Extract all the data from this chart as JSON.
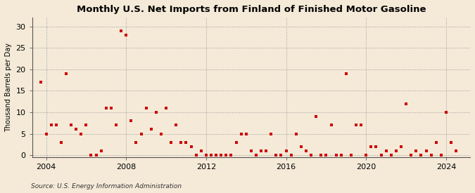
{
  "title": "Monthly U.S. Net Imports from Finland of Finished Motor Gasoline",
  "ylabel": "Thousand Barrels per Day",
  "source": "Source: U.S. Energy Information Administration",
  "background_color": "#f5ead8",
  "plot_bg_color": "#f5ead8",
  "marker_color": "#cc0000",
  "xlim": [
    2003.3,
    2025.2
  ],
  "ylim": [
    -0.5,
    32
  ],
  "yticks": [
    0,
    5,
    10,
    15,
    20,
    25,
    30
  ],
  "xticks": [
    2004,
    2008,
    2012,
    2016,
    2020,
    2024
  ],
  "data_points": [
    [
      2003.75,
      17
    ],
    [
      2004.0,
      5
    ],
    [
      2004.25,
      7
    ],
    [
      2004.5,
      7
    ],
    [
      2004.75,
      3
    ],
    [
      2005.0,
      19
    ],
    [
      2005.25,
      7
    ],
    [
      2005.5,
      6
    ],
    [
      2005.75,
      5
    ],
    [
      2006.0,
      7
    ],
    [
      2006.25,
      0
    ],
    [
      2006.5,
      0
    ],
    [
      2006.75,
      1
    ],
    [
      2007.0,
      11
    ],
    [
      2007.25,
      11
    ],
    [
      2007.5,
      7
    ],
    [
      2007.75,
      29
    ],
    [
      2008.0,
      28
    ],
    [
      2008.25,
      8
    ],
    [
      2008.5,
      3
    ],
    [
      2008.75,
      5
    ],
    [
      2009.0,
      11
    ],
    [
      2009.25,
      6
    ],
    [
      2009.5,
      10
    ],
    [
      2009.75,
      5
    ],
    [
      2010.0,
      11
    ],
    [
      2010.25,
      3
    ],
    [
      2010.5,
      7
    ],
    [
      2010.75,
      3
    ],
    [
      2011.0,
      3
    ],
    [
      2011.25,
      2
    ],
    [
      2011.5,
      0
    ],
    [
      2011.75,
      1
    ],
    [
      2012.0,
      0
    ],
    [
      2012.25,
      0
    ],
    [
      2012.5,
      0
    ],
    [
      2012.75,
      0
    ],
    [
      2013.0,
      0
    ],
    [
      2013.25,
      0
    ],
    [
      2013.5,
      3
    ],
    [
      2013.75,
      5
    ],
    [
      2014.0,
      5
    ],
    [
      2014.25,
      1
    ],
    [
      2014.5,
      0
    ],
    [
      2014.75,
      1
    ],
    [
      2015.0,
      1
    ],
    [
      2015.25,
      5
    ],
    [
      2015.5,
      0
    ],
    [
      2015.75,
      0
    ],
    [
      2016.0,
      1
    ],
    [
      2016.25,
      0
    ],
    [
      2016.5,
      5
    ],
    [
      2016.75,
      2
    ],
    [
      2017.0,
      1
    ],
    [
      2017.25,
      0
    ],
    [
      2017.5,
      9
    ],
    [
      2017.75,
      0
    ],
    [
      2018.0,
      0
    ],
    [
      2018.25,
      7
    ],
    [
      2018.5,
      0
    ],
    [
      2018.75,
      0
    ],
    [
      2019.0,
      19
    ],
    [
      2019.25,
      0
    ],
    [
      2019.5,
      7
    ],
    [
      2019.75,
      7
    ],
    [
      2020.0,
      0
    ],
    [
      2020.25,
      2
    ],
    [
      2020.5,
      2
    ],
    [
      2020.75,
      0
    ],
    [
      2021.0,
      1
    ],
    [
      2021.25,
      0
    ],
    [
      2021.5,
      1
    ],
    [
      2021.75,
      2
    ],
    [
      2022.0,
      12
    ],
    [
      2022.25,
      0
    ],
    [
      2022.5,
      1
    ],
    [
      2022.75,
      0
    ],
    [
      2023.0,
      1
    ],
    [
      2023.25,
      0
    ],
    [
      2023.5,
      3
    ],
    [
      2023.75,
      0
    ],
    [
      2024.0,
      10
    ],
    [
      2024.25,
      3
    ],
    [
      2024.5,
      1
    ]
  ]
}
